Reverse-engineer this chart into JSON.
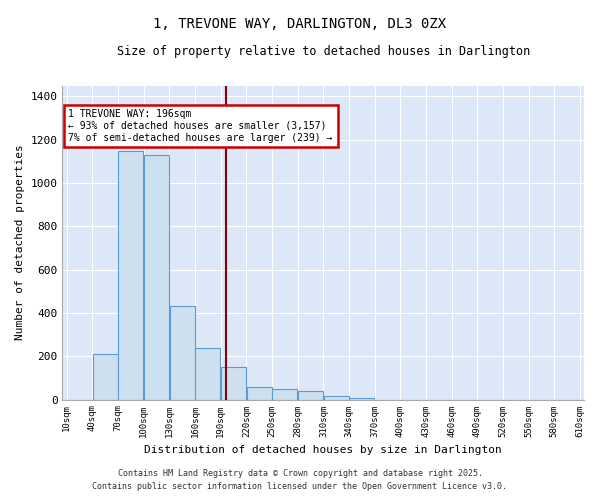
{
  "title": "1, TREVONE WAY, DARLINGTON, DL3 0ZX",
  "subtitle": "Size of property relative to detached houses in Darlington",
  "xlabel": "Distribution of detached houses by size in Darlington",
  "ylabel": "Number of detached properties",
  "bar_color": "#cce0f0",
  "bar_edge_color": "#5b9bd5",
  "background_color": "#dce8f8",
  "bin_edges": [
    10,
    40,
    70,
    100,
    130,
    160,
    190,
    220,
    250,
    280,
    310,
    340,
    370,
    400,
    430,
    460,
    490,
    520,
    550,
    580,
    610
  ],
  "bar_heights": [
    0,
    210,
    1150,
    1130,
    430,
    240,
    150,
    60,
    50,
    40,
    15,
    5,
    0,
    0,
    0,
    0,
    0,
    0,
    0,
    0
  ],
  "property_size": 196,
  "annotation_text": "1 TREVONE WAY: 196sqm\n← 93% of detached houses are smaller (3,157)\n7% of semi-detached houses are larger (239) →",
  "annotation_box_color": "#ffffff",
  "annotation_edge_color": "#cc0000",
  "vline_color": "#8b0000",
  "ylim": [
    0,
    1450
  ],
  "yticks": [
    0,
    200,
    400,
    600,
    800,
    1000,
    1200,
    1400
  ],
  "tick_labels": [
    "10sqm",
    "40sqm",
    "70sqm",
    "100sqm",
    "130sqm",
    "160sqm",
    "190sqm",
    "220sqm",
    "250sqm",
    "280sqm",
    "310sqm",
    "340sqm",
    "370sqm",
    "400sqm",
    "430sqm",
    "460sqm",
    "490sqm",
    "520sqm",
    "550sqm",
    "580sqm",
    "610sqm"
  ],
  "footnote1": "Contains HM Land Registry data © Crown copyright and database right 2025.",
  "footnote2": "Contains public sector information licensed under the Open Government Licence v3.0."
}
